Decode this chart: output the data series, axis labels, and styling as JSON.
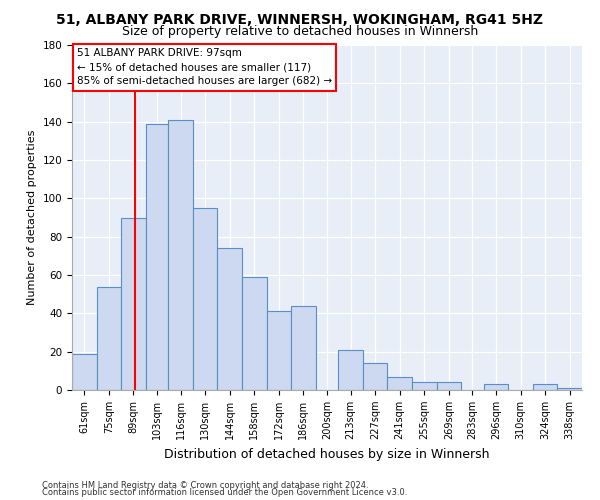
{
  "title_line1": "51, ALBANY PARK DRIVE, WINNERSH, WOKINGHAM, RG41 5HZ",
  "title_line2": "Size of property relative to detached houses in Winnersh",
  "xlabel": "Distribution of detached houses by size in Winnersh",
  "ylabel": "Number of detached properties",
  "bar_labels": [
    "61sqm",
    "75sqm",
    "89sqm",
    "103sqm",
    "116sqm",
    "130sqm",
    "144sqm",
    "158sqm",
    "172sqm",
    "186sqm",
    "200sqm",
    "213sqm",
    "227sqm",
    "241sqm",
    "255sqm",
    "269sqm",
    "283sqm",
    "296sqm",
    "310sqm",
    "324sqm",
    "338sqm"
  ],
  "bar_values": [
    19,
    54,
    90,
    139,
    141,
    95,
    74,
    59,
    41,
    44,
    0,
    21,
    14,
    7,
    4,
    4,
    0,
    3,
    0,
    3,
    1
  ],
  "bar_color": "#ccd9f0",
  "bar_edge_color": "#5b8ec4",
  "annotation_text": "51 ALBANY PARK DRIVE: 97sqm\n← 15% of detached houses are smaller (117)\n85% of semi-detached houses are larger (682) →",
  "red_line_x": 97,
  "ylim": [
    0,
    180
  ],
  "yticks": [
    0,
    20,
    40,
    60,
    80,
    100,
    120,
    140,
    160,
    180
  ],
  "footer_line1": "Contains HM Land Registry data © Crown copyright and database right 2024.",
  "footer_line2": "Contains public sector information licensed under the Open Government Licence v3.0.",
  "fig_bg_color": "#ffffff",
  "plot_bg_color": "#e8eef8",
  "title1_fontsize": 10,
  "title2_fontsize": 9
}
